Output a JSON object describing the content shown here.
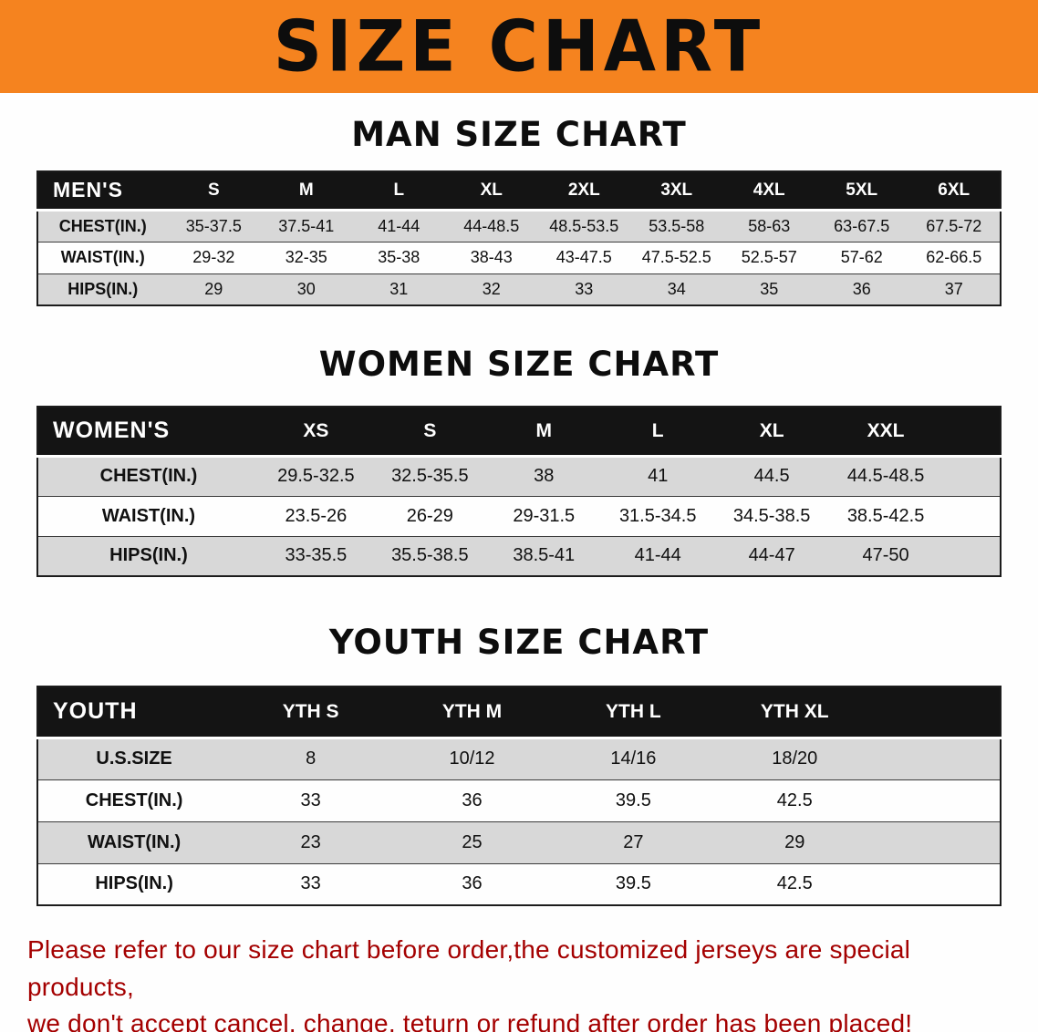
{
  "banner": {
    "title": "SIZE CHART"
  },
  "colors": {
    "banner_bg": "#F5831F",
    "header_bg": "#141414",
    "row_alt": "#d8d8d8",
    "line": "#1c1c1c",
    "disclaimer": "#A40000"
  },
  "sections": [
    {
      "key": "men",
      "heading": "MAN SIZE CHART",
      "columns": [
        "MEN'S",
        "S",
        "M",
        "L",
        "XL",
        "2XL",
        "3XL",
        "4XL",
        "5XL",
        "6XL"
      ],
      "rows": [
        [
          "CHEST(IN.)",
          "35-37.5",
          "37.5-41",
          "41-44",
          "44-48.5",
          "48.5-53.5",
          "53.5-58",
          "58-63",
          "63-67.5",
          "67.5-72"
        ],
        [
          "WAIST(IN.)",
          "29-32",
          "32-35",
          "35-38",
          "38-43",
          "43-47.5",
          "47.5-52.5",
          "52.5-57",
          "57-62",
          "62-66.5"
        ],
        [
          "HIPS(IN.)",
          "29",
          "30",
          "31",
          "32",
          "33",
          "34",
          "35",
          "36",
          "37"
        ]
      ]
    },
    {
      "key": "women",
      "heading": "WOMEN SIZE CHART",
      "columns": [
        "WOMEN'S",
        "XS",
        "S",
        "M",
        "L",
        "XL",
        "XXL"
      ],
      "rows": [
        [
          "CHEST(IN.)",
          "29.5-32.5",
          "32.5-35.5",
          "38",
          "41",
          "44.5",
          "44.5-48.5"
        ],
        [
          "WAIST(IN.)",
          "23.5-26",
          "26-29",
          "29-31.5",
          "31.5-34.5",
          "34.5-38.5",
          "38.5-42.5"
        ],
        [
          "HIPS(IN.)",
          "33-35.5",
          "35.5-38.5",
          "38.5-41",
          "41-44",
          "44-47",
          "47-50"
        ]
      ]
    },
    {
      "key": "youth",
      "heading": "YOUTH SIZE CHART",
      "columns": [
        "YOUTH",
        "YTH S",
        "YTH M",
        "YTH L",
        "YTH XL"
      ],
      "rows": [
        [
          "U.S.SIZE",
          "8",
          "10/12",
          "14/16",
          "18/20"
        ],
        [
          "CHEST(IN.)",
          "33",
          "36",
          "39.5",
          "42.5"
        ],
        [
          "WAIST(IN.)",
          "23",
          "25",
          "27",
          "29"
        ],
        [
          "HIPS(IN.)",
          "33",
          "36",
          "39.5",
          "42.5"
        ]
      ]
    }
  ],
  "disclaimer": {
    "line1": "Please refer to our size chart before order,the customized jerseys are special products,",
    "line2": "we don't accept cancel, change, teturn or refund after order has been placed!"
  }
}
